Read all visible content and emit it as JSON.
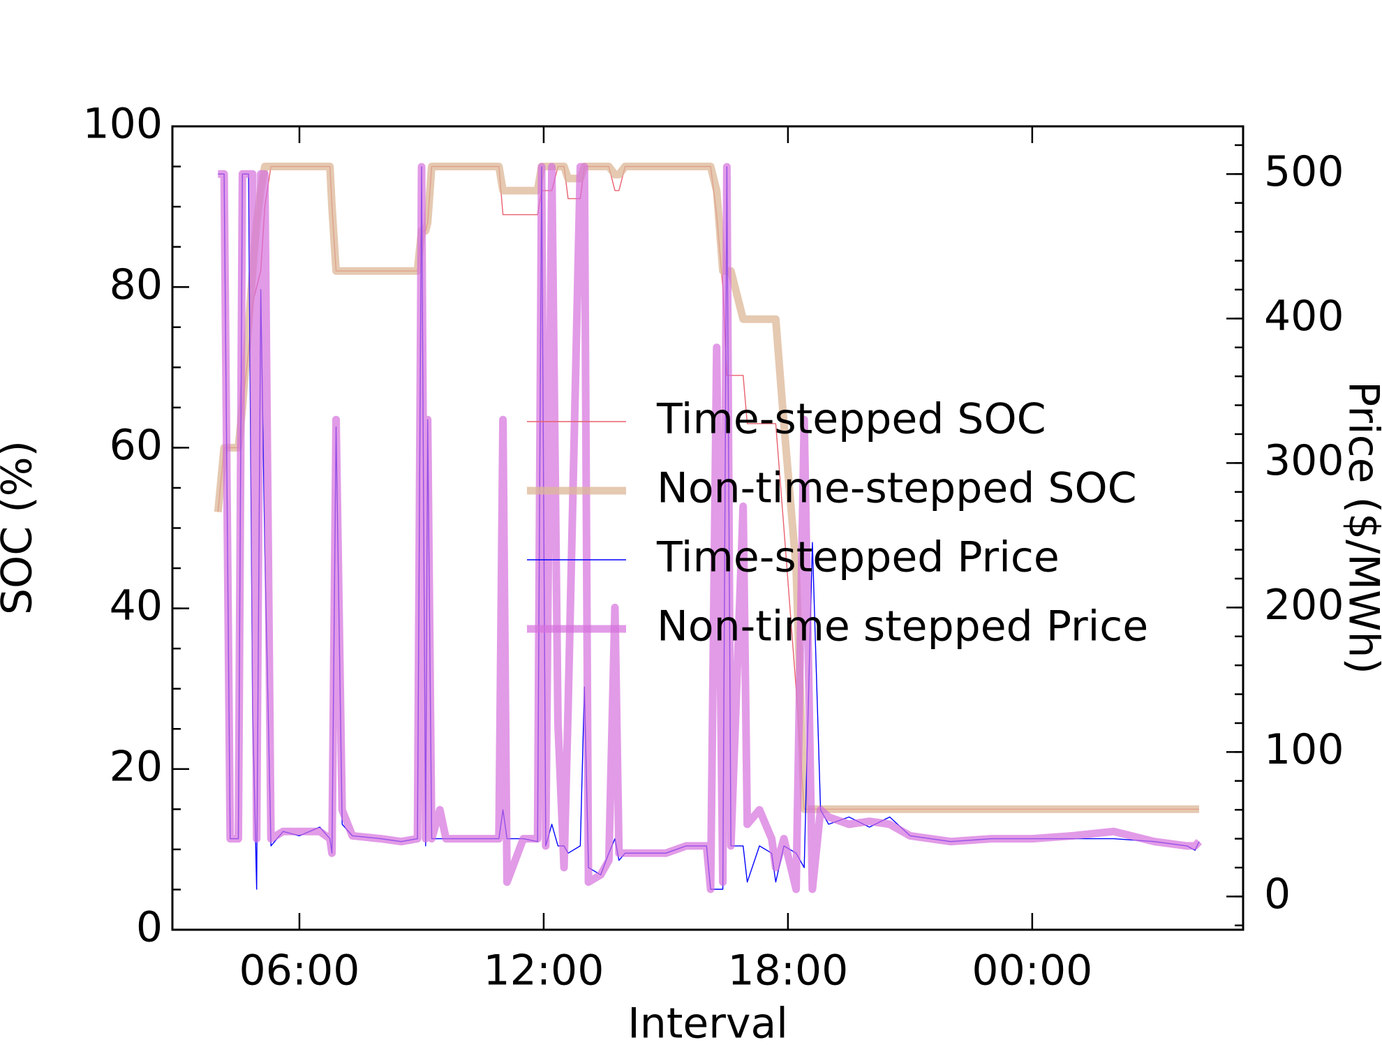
{
  "chart_data": {
    "type": "line",
    "x_label": "Interval",
    "y_label": "SOC (%)",
    "y2_label": "Price ($/MWh)",
    "xlim": [
      2.88,
      29.18
    ],
    "xticks": [
      {
        "value": 6,
        "label": "06:00"
      },
      {
        "value": 12,
        "label": "12:00"
      },
      {
        "value": 18,
        "label": "18:00"
      },
      {
        "value": 24,
        "label": "00:00"
      }
    ],
    "ylim": [
      0,
      100
    ],
    "yticks": [
      0,
      20,
      40,
      60,
      80,
      100
    ],
    "y2lim": [
      -23,
      533
    ],
    "y2ticks": [
      0,
      100,
      200,
      300,
      400,
      500
    ],
    "minor_ticks": true,
    "legend": "center right",
    "x": [
      4.0,
      4.15,
      4.3,
      4.5,
      4.6,
      4.75,
      4.85,
      4.95,
      5.05,
      5.15,
      5.3,
      5.6,
      6.0,
      6.5,
      6.75,
      6.8,
      6.9,
      7.05,
      7.3,
      8.0,
      8.5,
      8.9,
      9.0,
      9.1,
      9.15,
      9.25,
      9.45,
      9.6,
      10.5,
      10.9,
      11.0,
      11.1,
      11.5,
      11.85,
      11.95,
      12.05,
      12.2,
      12.35,
      12.5,
      12.6,
      12.9,
      13.0,
      13.1,
      13.4,
      13.6,
      13.75,
      13.85,
      14.0,
      15.0,
      15.5,
      16.0,
      16.1,
      16.25,
      16.4,
      16.5,
      16.6,
      16.9,
      17.0,
      17.3,
      17.6,
      17.7,
      17.9,
      18.2,
      18.4,
      18.6,
      18.8,
      19.0,
      19.5,
      20.0,
      20.5,
      21.0,
      22.0,
      23.0,
      24.0,
      25.0,
      26.0,
      27.0,
      27.8,
      28.0,
      28.1
    ],
    "series": [
      {
        "name": "Time-stepped SOC",
        "color": "#e8606e",
        "axis": "y",
        "values": [
          52,
          60,
          60,
          60,
          65,
          72,
          78,
          80,
          82,
          90,
          95,
          95,
          95,
          95,
          95,
          90,
          82,
          82,
          82,
          82,
          82,
          82,
          87,
          87,
          88,
          95,
          95,
          95,
          95,
          95,
          89,
          89,
          89,
          89,
          92,
          92,
          92,
          95,
          95,
          91,
          91,
          95,
          95,
          95,
          95,
          92,
          92,
          95,
          95,
          95,
          95,
          95,
          89,
          80,
          69,
          69,
          69,
          63,
          63,
          63,
          63,
          50,
          30,
          15,
          15,
          15,
          15,
          15,
          15,
          15,
          15,
          15,
          15,
          15,
          15,
          15,
          15,
          15,
          15,
          15
        ]
      },
      {
        "name": "Non-time-stepped SOC",
        "color": "#dcb797",
        "axis": "y",
        "values": [
          52,
          60,
          60,
          60,
          65,
          75,
          82,
          88,
          92,
          95,
          95,
          95,
          95,
          95,
          95,
          90,
          82,
          82,
          82,
          82,
          82,
          82,
          87,
          87,
          88,
          95,
          95,
          95,
          95,
          95,
          92,
          92,
          92,
          92,
          95,
          95,
          95,
          95,
          95,
          93.5,
          93.5,
          95,
          95,
          95,
          95,
          94,
          94,
          95,
          95,
          95,
          95,
          95,
          92,
          82,
          82,
          82,
          76,
          76,
          76,
          76,
          76,
          63,
          45,
          15,
          15,
          15,
          15,
          15,
          15,
          15,
          15,
          15,
          15,
          15,
          15,
          15,
          15,
          15,
          15,
          15
        ]
      },
      {
        "name": "Time-stepped Price",
        "color": "#0000ff",
        "axis": "y2",
        "values": [
          500,
          500,
          40,
          40,
          500,
          500,
          130,
          5,
          420,
          240,
          35,
          45,
          42,
          48,
          40,
          30,
          325,
          50,
          42,
          40,
          38,
          40,
          505,
          35,
          330,
          40,
          40,
          40,
          40,
          40,
          60,
          40,
          40,
          38,
          505,
          35,
          50,
          35,
          35,
          30,
          35,
          145,
          20,
          15,
          30,
          40,
          25,
          30,
          30,
          35,
          35,
          5,
          5,
          5,
          505,
          35,
          35,
          10,
          35,
          30,
          10,
          35,
          30,
          20,
          245,
          60,
          50,
          55,
          48,
          55,
          42,
          38,
          40,
          40,
          40,
          40,
          38,
          35,
          32,
          38
        ]
      },
      {
        "name": "Non-time stepped Price",
        "color": "#d670dd",
        "axis": "y2",
        "values": [
          500,
          500,
          40,
          40,
          500,
          500,
          500,
          40,
          500,
          500,
          40,
          45,
          45,
          45,
          40,
          30,
          330,
          60,
          42,
          40,
          38,
          40,
          505,
          40,
          330,
          40,
          60,
          40,
          40,
          40,
          330,
          10,
          40,
          40,
          505,
          35,
          505,
          120,
          20,
          130,
          505,
          505,
          10,
          15,
          25,
          200,
          30,
          30,
          30,
          35,
          35,
          5,
          380,
          10,
          505,
          35,
          270,
          50,
          60,
          40,
          20,
          40,
          5,
          330,
          5,
          60,
          55,
          50,
          52,
          50,
          42,
          38,
          40,
          40,
          42,
          45,
          38,
          35,
          35,
          38
        ]
      }
    ]
  }
}
